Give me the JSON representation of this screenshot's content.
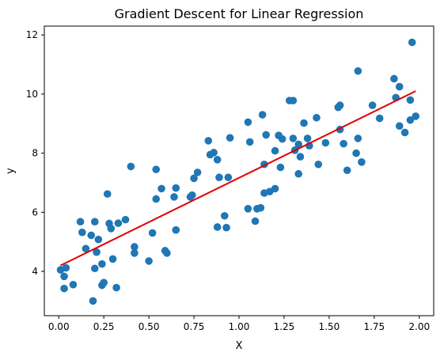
{
  "chart_data": {
    "type": "scatter",
    "title": "Gradient Descent for Linear Regression",
    "xlabel": "X",
    "ylabel": "y",
    "xlim": [
      -0.08,
      2.08
    ],
    "ylim": [
      2.5,
      12.3
    ],
    "xticks": [
      {
        "value": 0.0,
        "label": "0.00"
      },
      {
        "value": 0.25,
        "label": "0.25"
      },
      {
        "value": 0.5,
        "label": "0.50"
      },
      {
        "value": 0.75,
        "label": "0.75"
      },
      {
        "value": 1.0,
        "label": "1.00"
      },
      {
        "value": 1.25,
        "label": "1.25"
      },
      {
        "value": 1.5,
        "label": "1.50"
      },
      {
        "value": 1.75,
        "label": "1.75"
      },
      {
        "value": 2.0,
        "label": "2.00"
      }
    ],
    "yticks": [
      {
        "value": 4,
        "label": "4"
      },
      {
        "value": 6,
        "label": "6"
      },
      {
        "value": 8,
        "label": "8"
      },
      {
        "value": 10,
        "label": "10"
      },
      {
        "value": 12,
        "label": "12"
      }
    ],
    "grid": false,
    "point_color": "#1f77b4",
    "line_color": "#e00000",
    "points": [
      [
        0.01,
        4.05
      ],
      [
        0.03,
        3.83
      ],
      [
        0.04,
        4.12
      ],
      [
        0.03,
        3.42
      ],
      [
        0.08,
        3.55
      ],
      [
        0.12,
        5.68
      ],
      [
        0.13,
        5.32
      ],
      [
        0.15,
        4.77
      ],
      [
        0.18,
        5.22
      ],
      [
        0.2,
        5.68
      ],
      [
        0.21,
        4.65
      ],
      [
        0.22,
        5.08
      ],
      [
        0.2,
        4.1
      ],
      [
        0.19,
        3.0
      ],
      [
        0.24,
        4.25
      ],
      [
        0.24,
        3.53
      ],
      [
        0.25,
        3.62
      ],
      [
        0.27,
        6.62
      ],
      [
        0.28,
        5.62
      ],
      [
        0.29,
        5.45
      ],
      [
        0.3,
        4.42
      ],
      [
        0.32,
        3.45
      ],
      [
        0.33,
        5.63
      ],
      [
        0.37,
        5.75
      ],
      [
        0.4,
        7.55
      ],
      [
        0.42,
        4.83
      ],
      [
        0.42,
        4.62
      ],
      [
        0.5,
        4.35
      ],
      [
        0.52,
        5.3
      ],
      [
        0.54,
        7.45
      ],
      [
        0.54,
        6.45
      ],
      [
        0.57,
        6.8
      ],
      [
        0.59,
        4.7
      ],
      [
        0.6,
        4.62
      ],
      [
        0.64,
        6.52
      ],
      [
        0.65,
        6.82
      ],
      [
        0.65,
        5.4
      ],
      [
        0.73,
        6.52
      ],
      [
        0.74,
        6.58
      ],
      [
        0.75,
        7.15
      ],
      [
        0.77,
        7.35
      ],
      [
        0.83,
        8.42
      ],
      [
        0.84,
        7.95
      ],
      [
        0.86,
        8.02
      ],
      [
        0.88,
        7.78
      ],
      [
        0.88,
        5.5
      ],
      [
        0.89,
        7.18
      ],
      [
        0.92,
        5.88
      ],
      [
        0.93,
        5.48
      ],
      [
        0.94,
        7.18
      ],
      [
        0.95,
        8.52
      ],
      [
        1.05,
        9.05
      ],
      [
        1.05,
        6.12
      ],
      [
        1.06,
        8.38
      ],
      [
        1.09,
        5.7
      ],
      [
        1.1,
        6.12
      ],
      [
        1.12,
        6.15
      ],
      [
        1.13,
        9.3
      ],
      [
        1.14,
        7.62
      ],
      [
        1.14,
        6.65
      ],
      [
        1.15,
        8.62
      ],
      [
        1.17,
        6.7
      ],
      [
        1.2,
        8.08
      ],
      [
        1.2,
        6.8
      ],
      [
        1.22,
        8.6
      ],
      [
        1.23,
        7.52
      ],
      [
        1.24,
        8.48
      ],
      [
        1.28,
        9.78
      ],
      [
        1.3,
        9.78
      ],
      [
        1.3,
        8.5
      ],
      [
        1.31,
        8.1
      ],
      [
        1.33,
        8.3
      ],
      [
        1.33,
        7.3
      ],
      [
        1.34,
        7.88
      ],
      [
        1.36,
        9.02
      ],
      [
        1.38,
        8.5
      ],
      [
        1.39,
        8.25
      ],
      [
        1.43,
        9.2
      ],
      [
        1.44,
        7.62
      ],
      [
        1.48,
        8.35
      ],
      [
        1.55,
        9.55
      ],
      [
        1.56,
        9.62
      ],
      [
        1.56,
        8.8
      ],
      [
        1.58,
        8.32
      ],
      [
        1.6,
        7.42
      ],
      [
        1.65,
        8.0
      ],
      [
        1.66,
        10.78
      ],
      [
        1.66,
        8.5
      ],
      [
        1.68,
        7.7
      ],
      [
        1.74,
        9.62
      ],
      [
        1.78,
        9.18
      ],
      [
        1.86,
        10.52
      ],
      [
        1.87,
        9.88
      ],
      [
        1.89,
        10.25
      ],
      [
        1.89,
        8.92
      ],
      [
        1.92,
        8.7
      ],
      [
        1.95,
        9.12
      ],
      [
        1.95,
        9.8
      ],
      [
        1.96,
        11.75
      ],
      [
        1.98,
        9.25
      ]
    ],
    "regression_line": {
      "x": [
        0.01,
        1.98
      ],
      "y": [
        4.2,
        10.1
      ]
    }
  }
}
